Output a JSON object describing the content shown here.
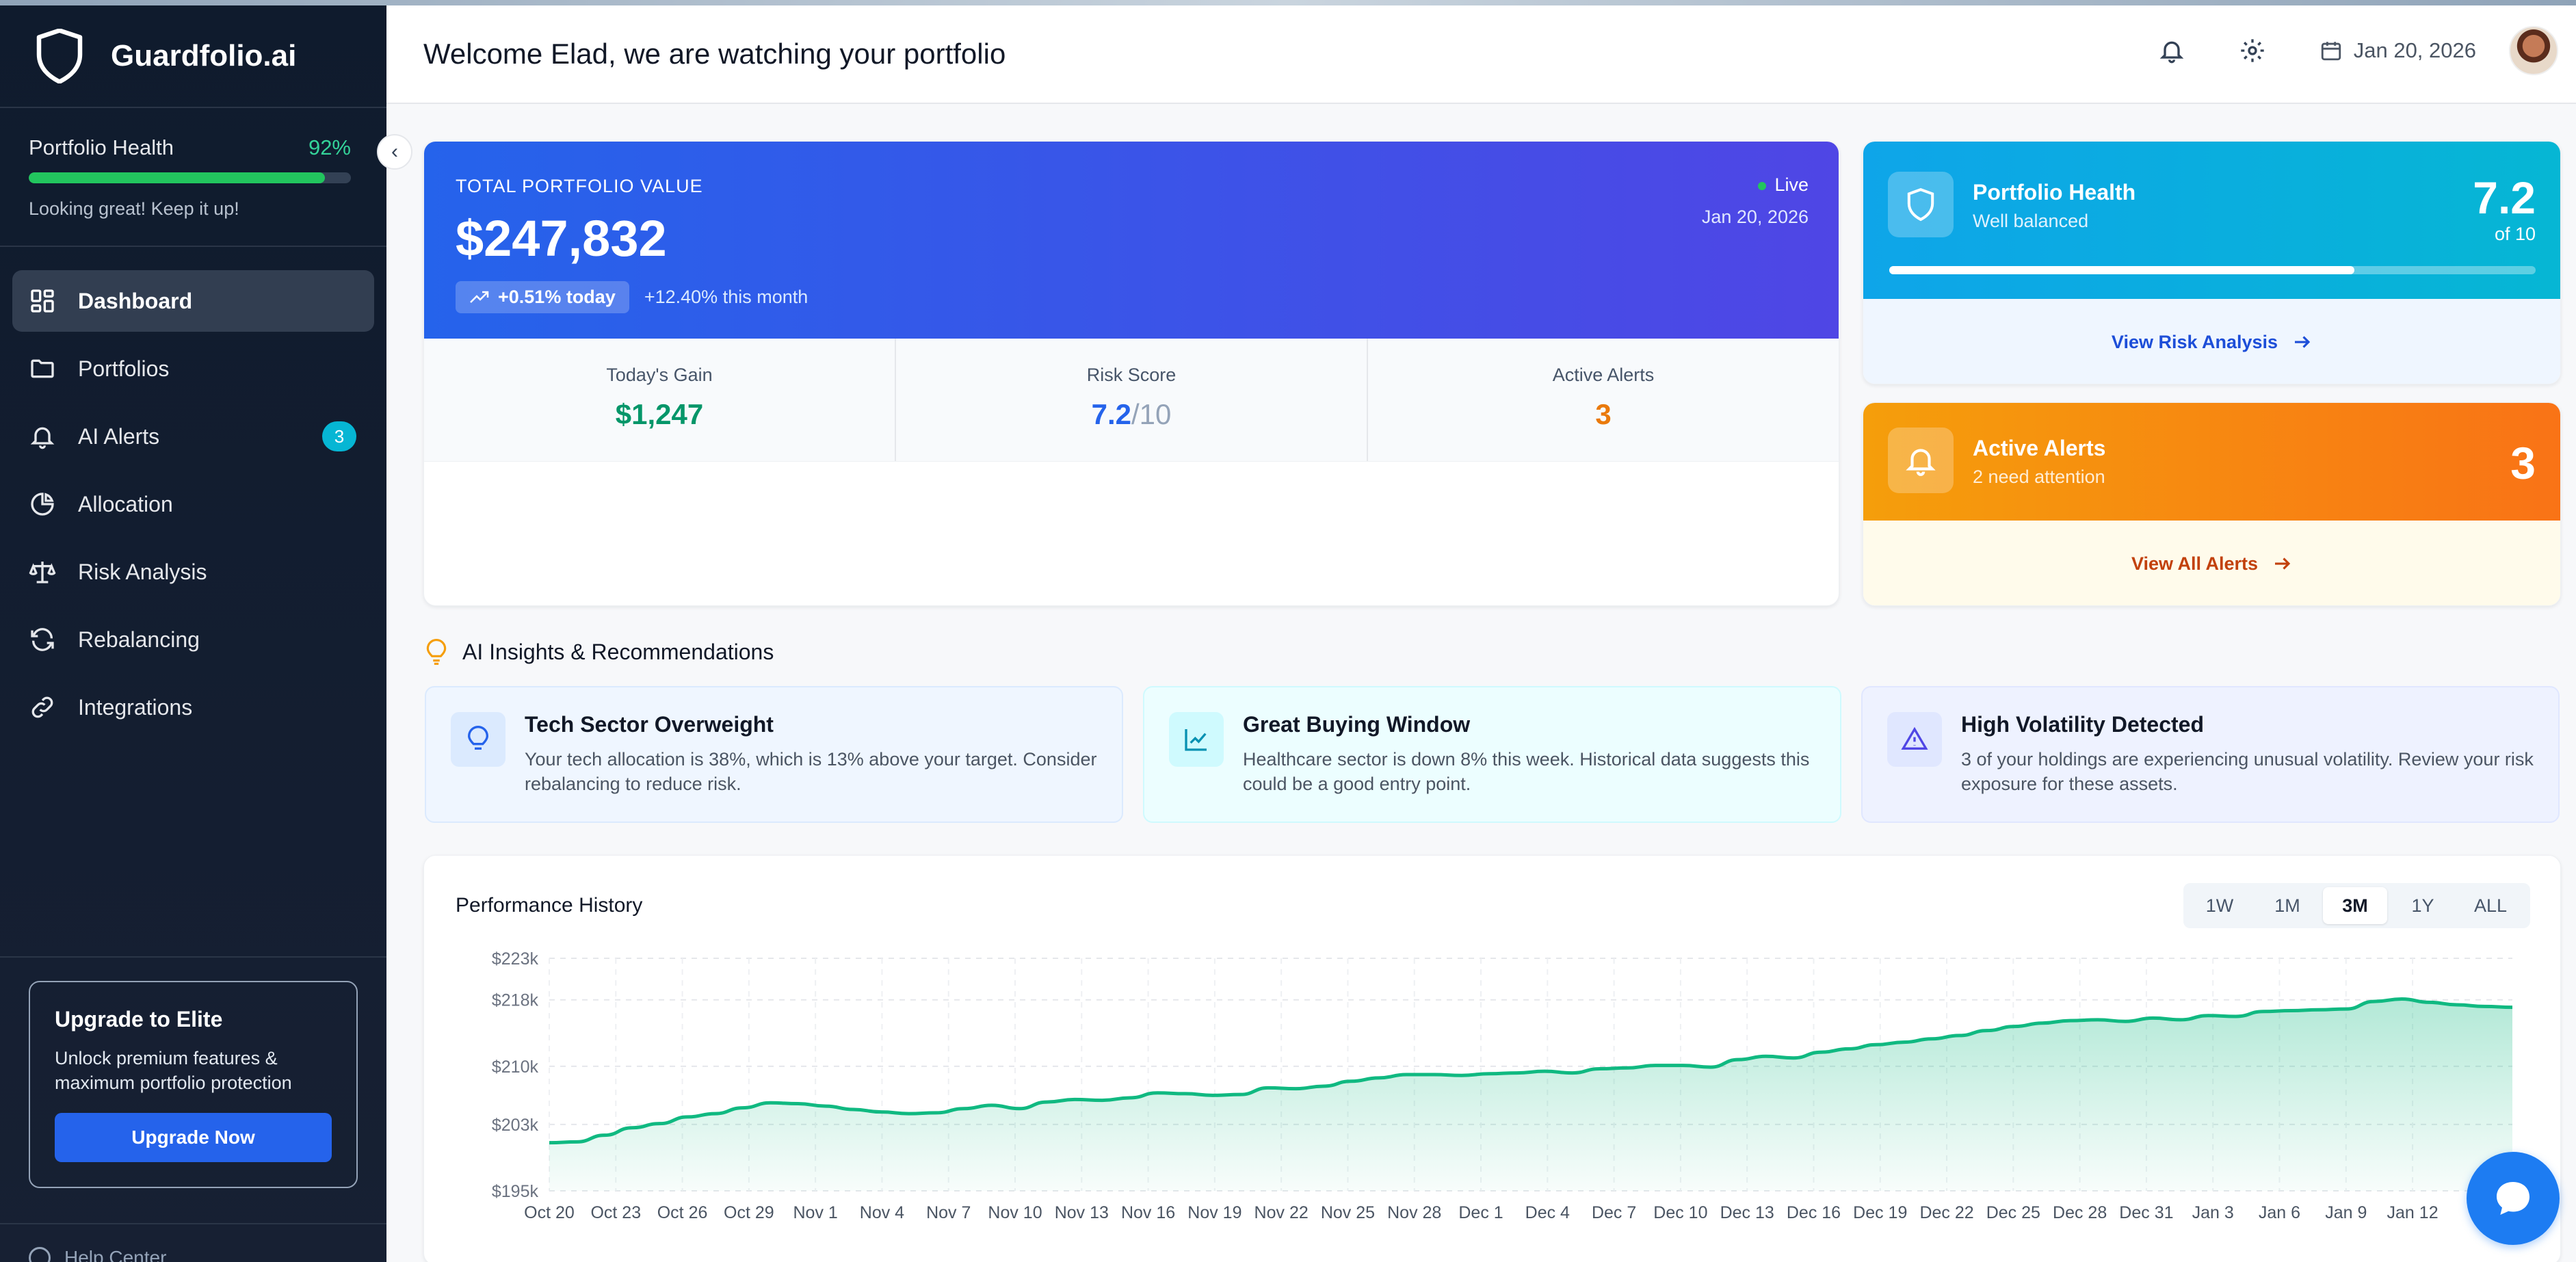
{
  "brand": {
    "name": "Guardfolio.ai"
  },
  "sidebar": {
    "health_label": "Portfolio Health",
    "health_pct_text": "92%",
    "health_pct": 0.92,
    "health_msg": "Looking great! Keep it up!",
    "items": [
      {
        "label": "Dashboard",
        "icon": "dashboard-icon",
        "active": true
      },
      {
        "label": "Portfolios",
        "icon": "folder-icon"
      },
      {
        "label": "AI Alerts",
        "icon": "bell-icon",
        "badge": "3"
      },
      {
        "label": "Allocation",
        "icon": "pie-icon"
      },
      {
        "label": "Risk Analysis",
        "icon": "scale-icon"
      },
      {
        "label": "Rebalancing",
        "icon": "refresh-icon"
      },
      {
        "label": "Integrations",
        "icon": "link-icon"
      }
    ],
    "upgrade": {
      "title": "Upgrade to Elite",
      "desc": "Unlock premium features & maximum portfolio protection",
      "button": "Upgrade Now"
    },
    "help": "Help Center"
  },
  "header": {
    "welcome": "Welcome Elad, we are watching your portfolio",
    "date": "Jan 20, 2026"
  },
  "portfolio": {
    "label": "TOTAL PORTFOLIO VALUE",
    "value": "$247,832",
    "today": "+0.51% today",
    "month": "+12.40% this month",
    "live": "Live",
    "date": "Jan 20, 2026",
    "stats": {
      "gain_label": "Today's Gain",
      "gain_value": "$1,247",
      "risk_label": "Risk Score",
      "risk_value": "7.2",
      "risk_max": "/10",
      "alerts_label": "Active Alerts",
      "alerts_value": "3"
    }
  },
  "health_card": {
    "title": "Portfolio Health",
    "sub": "Well balanced",
    "score": "7.2",
    "of": "of 10",
    "progress": 0.72,
    "link": "View Risk Analysis"
  },
  "alerts_card": {
    "title": "Active Alerts",
    "sub": "2 need attention",
    "count": "3",
    "link": "View All Alerts"
  },
  "insights": {
    "title": "AI Insights & Recommendations",
    "items": [
      {
        "title": "Tech Sector Overweight",
        "desc": "Your tech allocation is 38%, which is 13% above your target. Consider rebalancing to reduce risk."
      },
      {
        "title": "Great Buying Window",
        "desc": "Healthcare sector is down 8% this week. Historical data suggests this could be a good entry point."
      },
      {
        "title": "High Volatility Detected",
        "desc": "3 of your holdings are experiencing unusual volatility. Review your risk exposure for these assets."
      }
    ]
  },
  "performance": {
    "title": "Performance History",
    "timeframes": [
      "1W",
      "1M",
      "3M",
      "1Y",
      "ALL"
    ],
    "active_timeframe": "3M"
  },
  "colors": {
    "accent_green": "#10b981",
    "accent_blue": "#2563eb",
    "accent_orange": "#f97316"
  },
  "chart_data": {
    "type": "area",
    "title": "Performance History",
    "y_ticks": [
      "$223k",
      "$218k",
      "$210k",
      "$203k",
      "$195k"
    ],
    "y_tick_values": [
      223000,
      218000,
      210000,
      203000,
      195000
    ],
    "ylim": [
      195000,
      223000
    ],
    "x_ticks": [
      "Oct 20",
      "Oct 23",
      "Oct 26",
      "Oct 29",
      "Nov 1",
      "Nov 4",
      "Nov 7",
      "Nov 10",
      "Nov 13",
      "Nov 16",
      "Nov 19",
      "Nov 22",
      "Nov 25",
      "Nov 28",
      "Dec 1",
      "Dec 4",
      "Dec 7",
      "Dec 10",
      "Dec 13",
      "Dec 16",
      "Dec 19",
      "Dec 22",
      "Dec 25",
      "Dec 28",
      "Dec 31",
      "Jan 3",
      "Jan 6",
      "Jan 9",
      "Jan 12"
    ],
    "values": [
      200800,
      200900,
      201700,
      202600,
      203100,
      203900,
      204300,
      205000,
      205600,
      205500,
      205200,
      204800,
      204500,
      204300,
      204400,
      204900,
      205300,
      204900,
      205700,
      206000,
      205900,
      206200,
      206800,
      206700,
      206500,
      206600,
      207400,
      207300,
      207600,
      208200,
      208600,
      209000,
      209000,
      208900,
      209100,
      209200,
      209400,
      209200,
      209700,
      209800,
      210100,
      210100,
      209900,
      210800,
      211200,
      211000,
      211700,
      212100,
      212600,
      212900,
      213300,
      213700,
      214300,
      214800,
      215200,
      215500,
      215600,
      215400,
      215800,
      215600,
      216100,
      216000,
      216600,
      216700,
      216800,
      216900,
      217800,
      218100,
      217700,
      217400,
      217200,
      217100
    ],
    "grid": true,
    "legend": "none"
  }
}
